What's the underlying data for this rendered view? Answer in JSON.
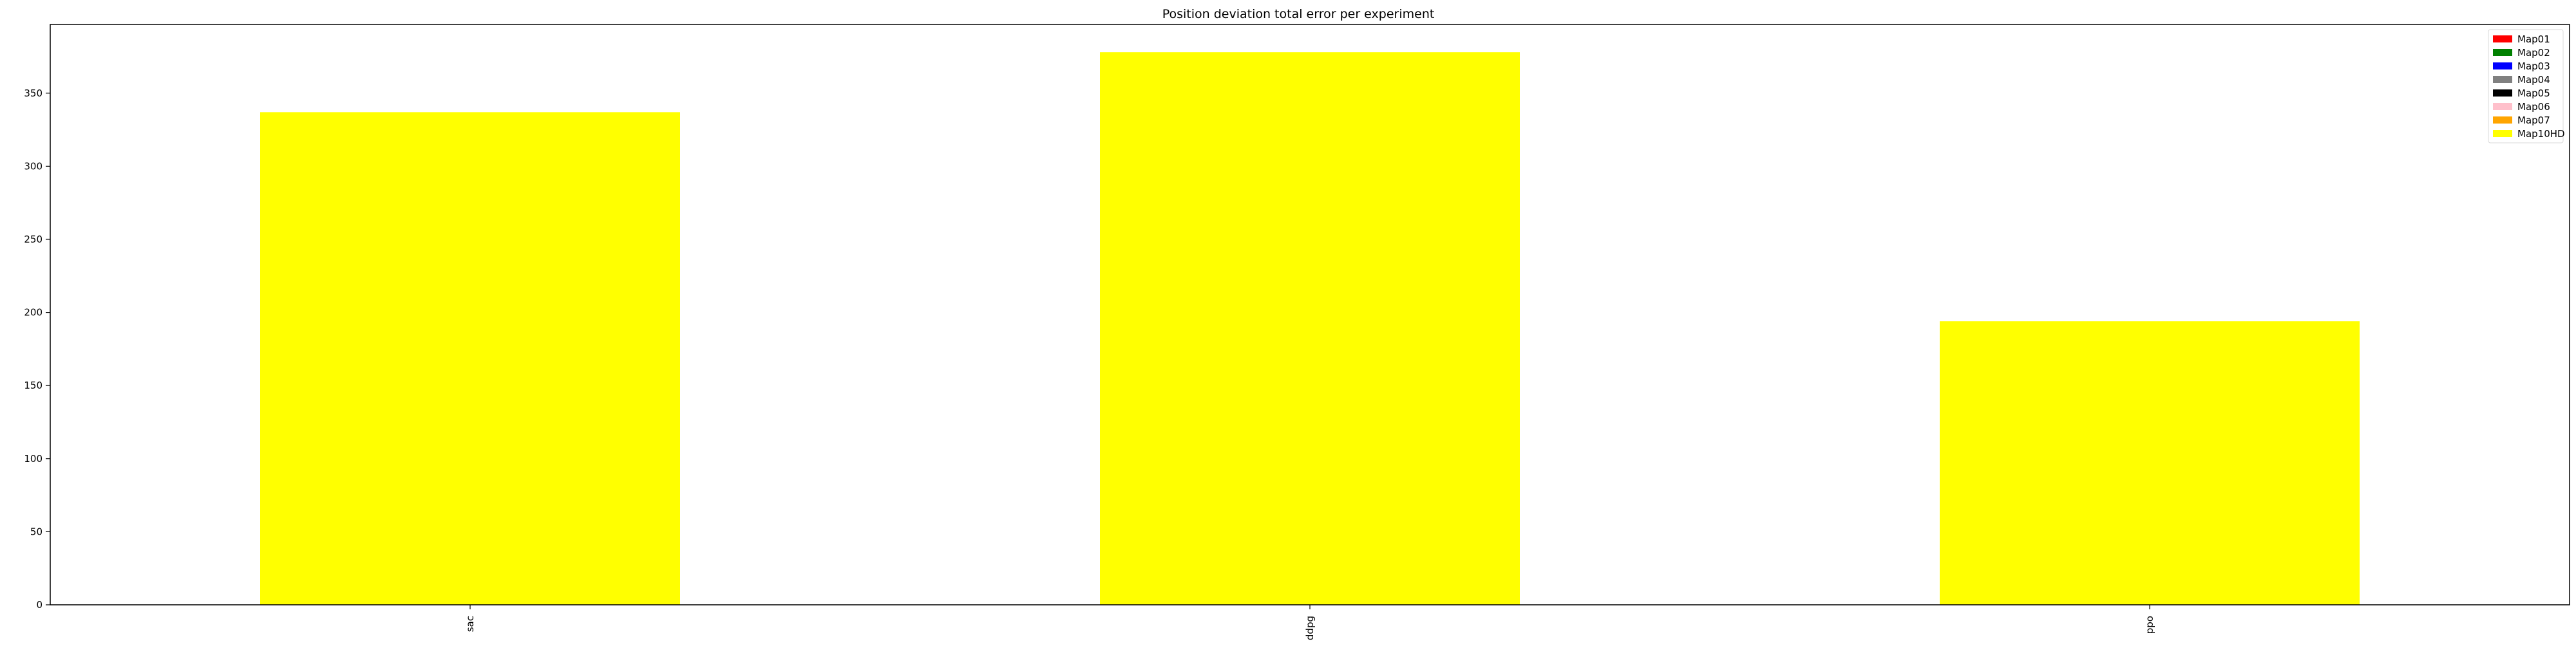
{
  "chart_data": {
    "type": "bar",
    "title": "Position deviation total error per experiment",
    "xlabel": "",
    "ylabel": "",
    "categories": [
      "sac",
      "ddpg",
      "ppo"
    ],
    "ylim": [
      0,
      397
    ],
    "yticks": [
      0,
      50,
      100,
      150,
      200,
      250,
      300,
      350
    ],
    "grid": false,
    "legend_position": "top-right",
    "series": [
      {
        "name": "Map01",
        "color": "#ff0000",
        "values": [
          0,
          0,
          0
        ]
      },
      {
        "name": "Map02",
        "color": "#008000",
        "values": [
          0,
          0,
          0
        ]
      },
      {
        "name": "Map03",
        "color": "#0000ff",
        "values": [
          0,
          0,
          0
        ]
      },
      {
        "name": "Map04",
        "color": "#808080",
        "values": [
          0,
          0,
          0
        ]
      },
      {
        "name": "Map05",
        "color": "#000000",
        "values": [
          0,
          0,
          0
        ]
      },
      {
        "name": "Map06",
        "color": "#ffc0cb",
        "values": [
          0,
          0,
          0
        ]
      },
      {
        "name": "Map07",
        "color": "#ffa500",
        "values": [
          0,
          0,
          0
        ]
      },
      {
        "name": "Map10HD",
        "color": "#ffff00",
        "values": [
          337,
          378,
          194
        ]
      }
    ]
  }
}
